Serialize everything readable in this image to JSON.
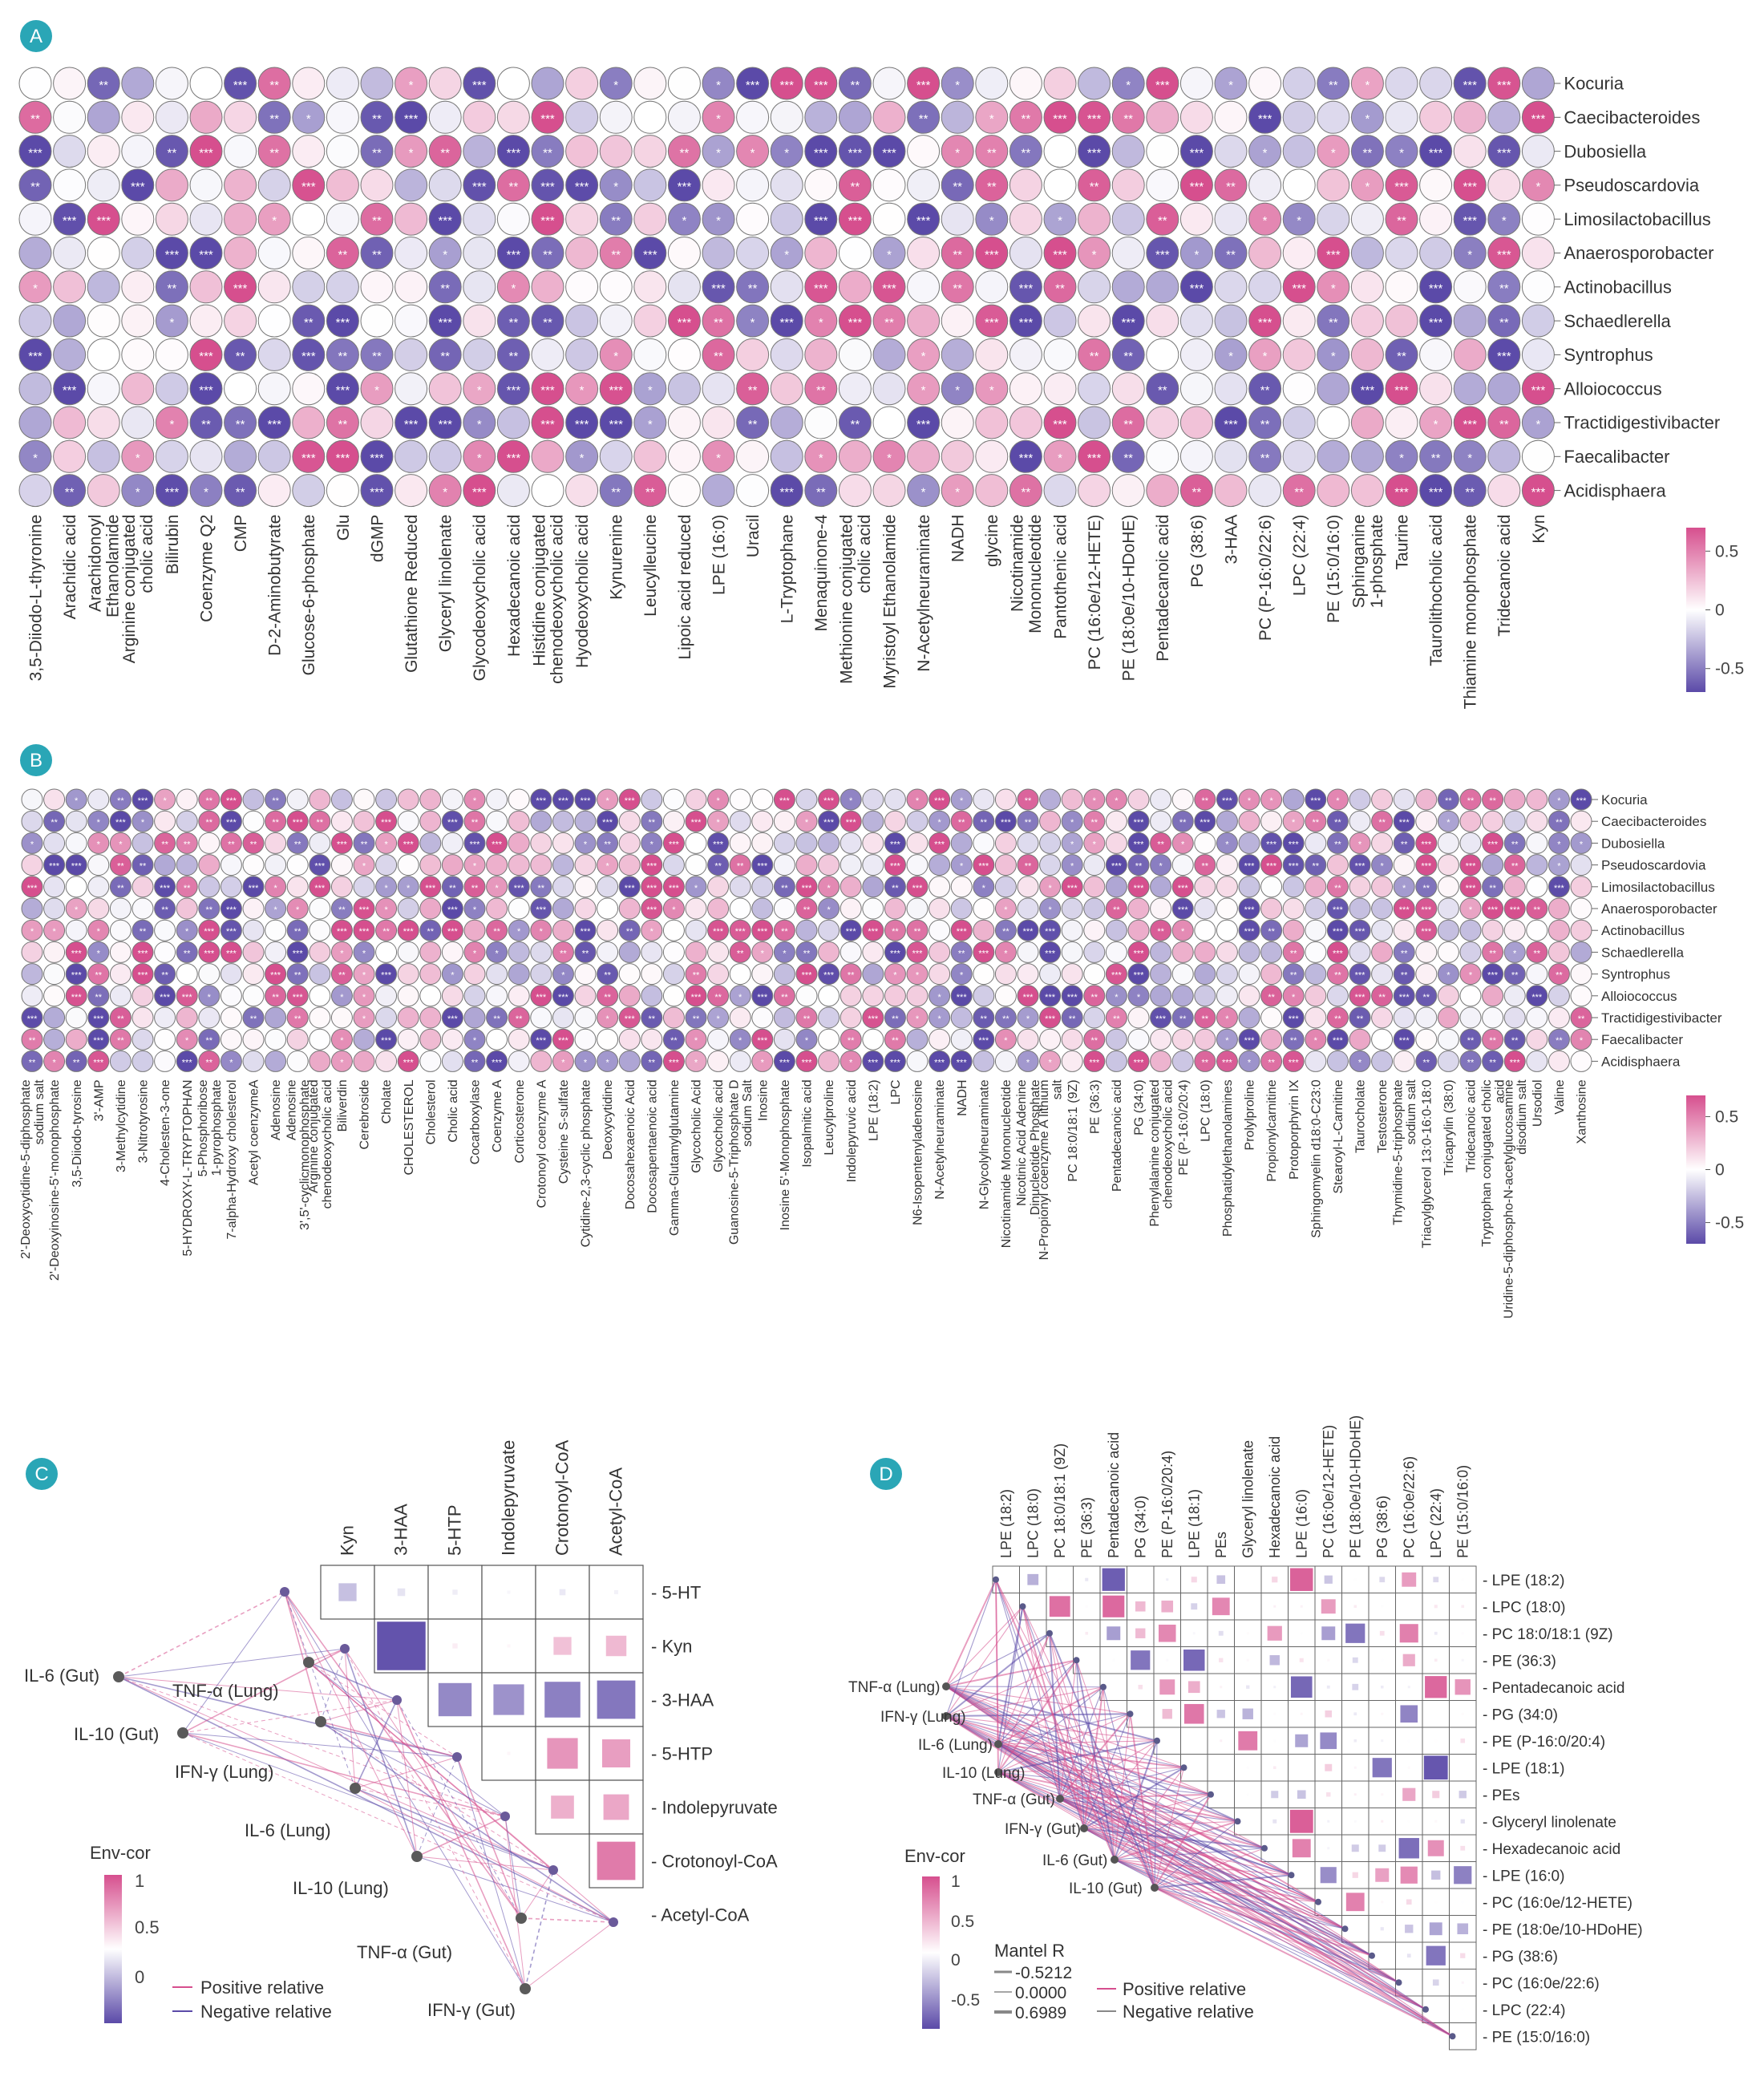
{
  "colors": {
    "positive": "#d64f8e",
    "negative": "#5b4aa8",
    "neutral": "#ffffff",
    "panel_badge": "#2aa6b6",
    "cell_border": "#6b6b6b"
  },
  "panels": {
    "a": "A",
    "b": "B",
    "c": "C",
    "d": "D"
  },
  "scale": {
    "ticks": [
      "0.5",
      "0",
      "-0.5"
    ]
  },
  "chart_data": [
    {
      "panel": "A",
      "type": "heatmap",
      "rows": [
        "Kocuria",
        "Caecibacteroides",
        "Dubosiella",
        "Pseudoscardovia",
        "Limosilactobacillus",
        "Anaerosporobacter",
        "Actinobacillus",
        "Schaedlerella",
        "Syntrophus",
        "Alloiococcus",
        "Tractidigestivibacter",
        "Faecalibacter",
        "Acidisphaera"
      ],
      "columns": [
        "3,5-Diiodo-L-thyronine",
        "Arachidic acid",
        "Arachidonoyl Ethanolamide",
        "Arginine conjugated cholic acid",
        "Bilirubin",
        "Coenzyme Q2",
        "CMP",
        "D-2-Aminobutyrate",
        "Glucose-6-phosphate",
        "Glu",
        "dGMP",
        "Glutathione Reduced",
        "Glyceryl linolenate",
        "Glycodeoxycholic acid",
        "Hexadecanoic acid",
        "Histidine conjugated chenodeoxycholic acid",
        "Hyodeoxycholic acid",
        "Kynurenine",
        "Leucylleucine",
        "Lipoic acid reduced",
        "LPE (16:0)",
        "Uracil",
        "L-Tryptophane",
        "Menaquinone-4",
        "Methionine conjugated cholic acid",
        "Myristoyl Ethanolamide",
        "N-Acetylneuraminate",
        "NADH",
        "glycine",
        "Nicotinamide Mononucleotide",
        "Pantothenic acid",
        "PC (16:0e/12-HETE)",
        "PE (18:0e/10-HDoHE)",
        "Pentadecanoic acid",
        "PG (38:6)",
        "3-HAA",
        "PC (P-16:0/22:6)",
        "LPC (22:4)",
        "PE (15:0/16:0)",
        "Sphinganine 1-phosphate",
        "Taurine",
        "Taurolithocholic acid",
        "Thiamine monophosphate",
        "Tridecanoic acid",
        "Kyn"
      ],
      "color_scale": {
        "min": -0.7,
        "max": 0.7,
        "ticks": [
          0.5,
          0,
          -0.5
        ]
      },
      "significance_marks": [
        "*",
        "**",
        "***"
      ]
    },
    {
      "panel": "B",
      "type": "heatmap",
      "rows": [
        "Kocuria",
        "Caecibacteroides",
        "Dubosiella",
        "Pseudoscardovia",
        "Limosilactobacillus",
        "Anaerosporobacter",
        "Actinobacillus",
        "Schaedlerella",
        "Syntrophus",
        "Alloiococcus",
        "Tractidigestivibacter",
        "Faecalibacter",
        "Acidisphaera"
      ],
      "columns": [
        "2'-Deoxycytidine-5-diphosphate sodium salt",
        "2'-Deoxyinosine-5'-monophosphate",
        "3,5-Diiodo-tyrosine",
        "3'-AMP",
        "3-Methylcytidine",
        "3-Nitrotyrosine",
        "4-Cholesten-3-one",
        "5-HYDROXY-L-TRYPTOPHAN",
        "5-Phosphoribose 1-pyrophosphate",
        "7-alpha-Hydroxy cholesterol",
        "Acetyl coenzymeA",
        "Adenosine",
        "Adenosine 3',5'-cyclicmonophosphate",
        "Arginine conjugated chenodeoxycholic acid",
        "Biliverdin",
        "Cerebroside",
        "Cholate",
        "CHOLESTEROL",
        "Cholesterol",
        "Cholic acid",
        "Cocarboxylase",
        "Coenzyme A",
        "Corticosterone",
        "Crotonoyl coenzyme A",
        "Cysteine S-sulfate",
        "Cytidine-2,3-cyclic phosphate",
        "Deoxycytidine",
        "Docosahexaenoic Acid",
        "Docosapentaenoic acid",
        "Gamma-Glutamylglutamine",
        "Glycocholic Acid",
        "Glycocholic acid",
        "Guanosine-5-Triphosphate D sodium Salt",
        "Inosine",
        "Inosine 5'-Monophosphate",
        "Isopalmitic acid",
        "Leucylproline",
        "Indolepyruvic acid",
        "LPE (18:2)",
        "LPC",
        "N6-Isopentenyladenosine",
        "N-Acetylneuraminate",
        "NADH",
        "N-Glycolylneuraminate",
        "Nicotinamide Mononucleotide",
        "Nicotinic Acid Adenine Dinucleotide Phosphate",
        "N-Propionyl coenzyme A lithium salt",
        "PC 18:0/18:1 (9Z)",
        "PE (36:3)",
        "Pentadecanoic acid",
        "PG (34:0)",
        "Phenylalanine conjugated chenodeoxycholic acid",
        "PE (P-16:0/20:4)",
        "LPC (18:0)",
        "Phosphatidylethanolamines",
        "Prolylproline",
        "Propionylcarnitine",
        "Protoporphyrin IX",
        "Sphingomyelin d18:0-C23:0",
        "Stearoyl-L-Carnitine",
        "Taurocholate",
        "Testosterone",
        "Thymidine-5-triphosphate sodium salt",
        "Triacylglycerol 13:0-16:0-18:0",
        "Tricaprylin (38:0)",
        "Tridecanoic acid",
        "Tryptophan conjugated cholic acid",
        "Uridine-5-diphospho-N-acetylglucosamine disodium salt",
        "Ursodiol",
        "Valine",
        "Xanthosine"
      ],
      "color_scale": {
        "min": -0.7,
        "max": 0.7,
        "ticks": [
          0.5,
          0,
          -0.5
        ]
      }
    },
    {
      "panel": "C",
      "type": "heatmap",
      "metabolites": [
        "5-HT",
        "Kyn",
        "3-HAA",
        "5-HTP",
        "Indolepyruvate",
        "Crotonoyl-CoA",
        "Acetyl-CoA"
      ],
      "cytokines": [
        "IL-6 (Gut)",
        "TNF-α (Lung)",
        "IL-10 (Gut)",
        "IFN-γ (Lung)",
        "IL-6 (Lung)",
        "IL-10 (Lung)",
        "TNF-α (Gut)",
        "IFN-γ (Gut)"
      ],
      "correlations": [
        [
          -0.35,
          -0.15,
          -0.1,
          -0.05,
          -0.12,
          -0.08
        ],
        [
          -0.95,
          0.1,
          0.05,
          0.35,
          0.4
        ],
        [
          -0.65,
          -0.6,
          -0.7,
          -0.75
        ],
        [
          0.05,
          0.6,
          0.55
        ],
        [
          0.45,
          0.5
        ],
        [
          0.75
        ]
      ],
      "legend": {
        "title": "Env-cor",
        "ticks": [
          1,
          0.5,
          0
        ],
        "positive": "Positive relative",
        "negative": "Negative relative"
      }
    },
    {
      "panel": "D",
      "type": "heatmap",
      "metabolites": [
        "LPE (18:2)",
        "LPC (18:0)",
        "PC 18:0/18:1 (9Z)",
        "PE (36:3)",
        "Pentadecanoic acid",
        "PG (34:0)",
        "PE (P-16:0/20:4)",
        "LPE (18:1)",
        "PEs",
        "Glyceryl linolenate",
        "Hexadecanoic acid",
        "LPE (16:0)",
        "PC (16:0e/12-HETE)",
        "PE (18:0e/10-HDoHE)",
        "PG (38:6)",
        "PC (16:0e/22:6)",
        "LPC (22:4)",
        "PE (15:0/16:0)"
      ],
      "cytokines": [
        "TNF-α (Lung)",
        "IFN-γ (Lung)",
        "IL-6 (Lung)",
        "IL-10 (Lung)",
        "TNF-α (Gut)",
        "IFN-γ (Gut)",
        "IL-6 (Gut)",
        "IL-10 (Gut)"
      ],
      "legend": {
        "title": "Env-cor",
        "ticks": [
          1,
          0.5,
          0,
          -0.5
        ],
        "mantel_title": "Mantel R",
        "mantel_values": [
          "-0.5212",
          "0.0000",
          "0.6989"
        ],
        "positive": "Positive relative",
        "negative": "Negative relative"
      }
    }
  ]
}
